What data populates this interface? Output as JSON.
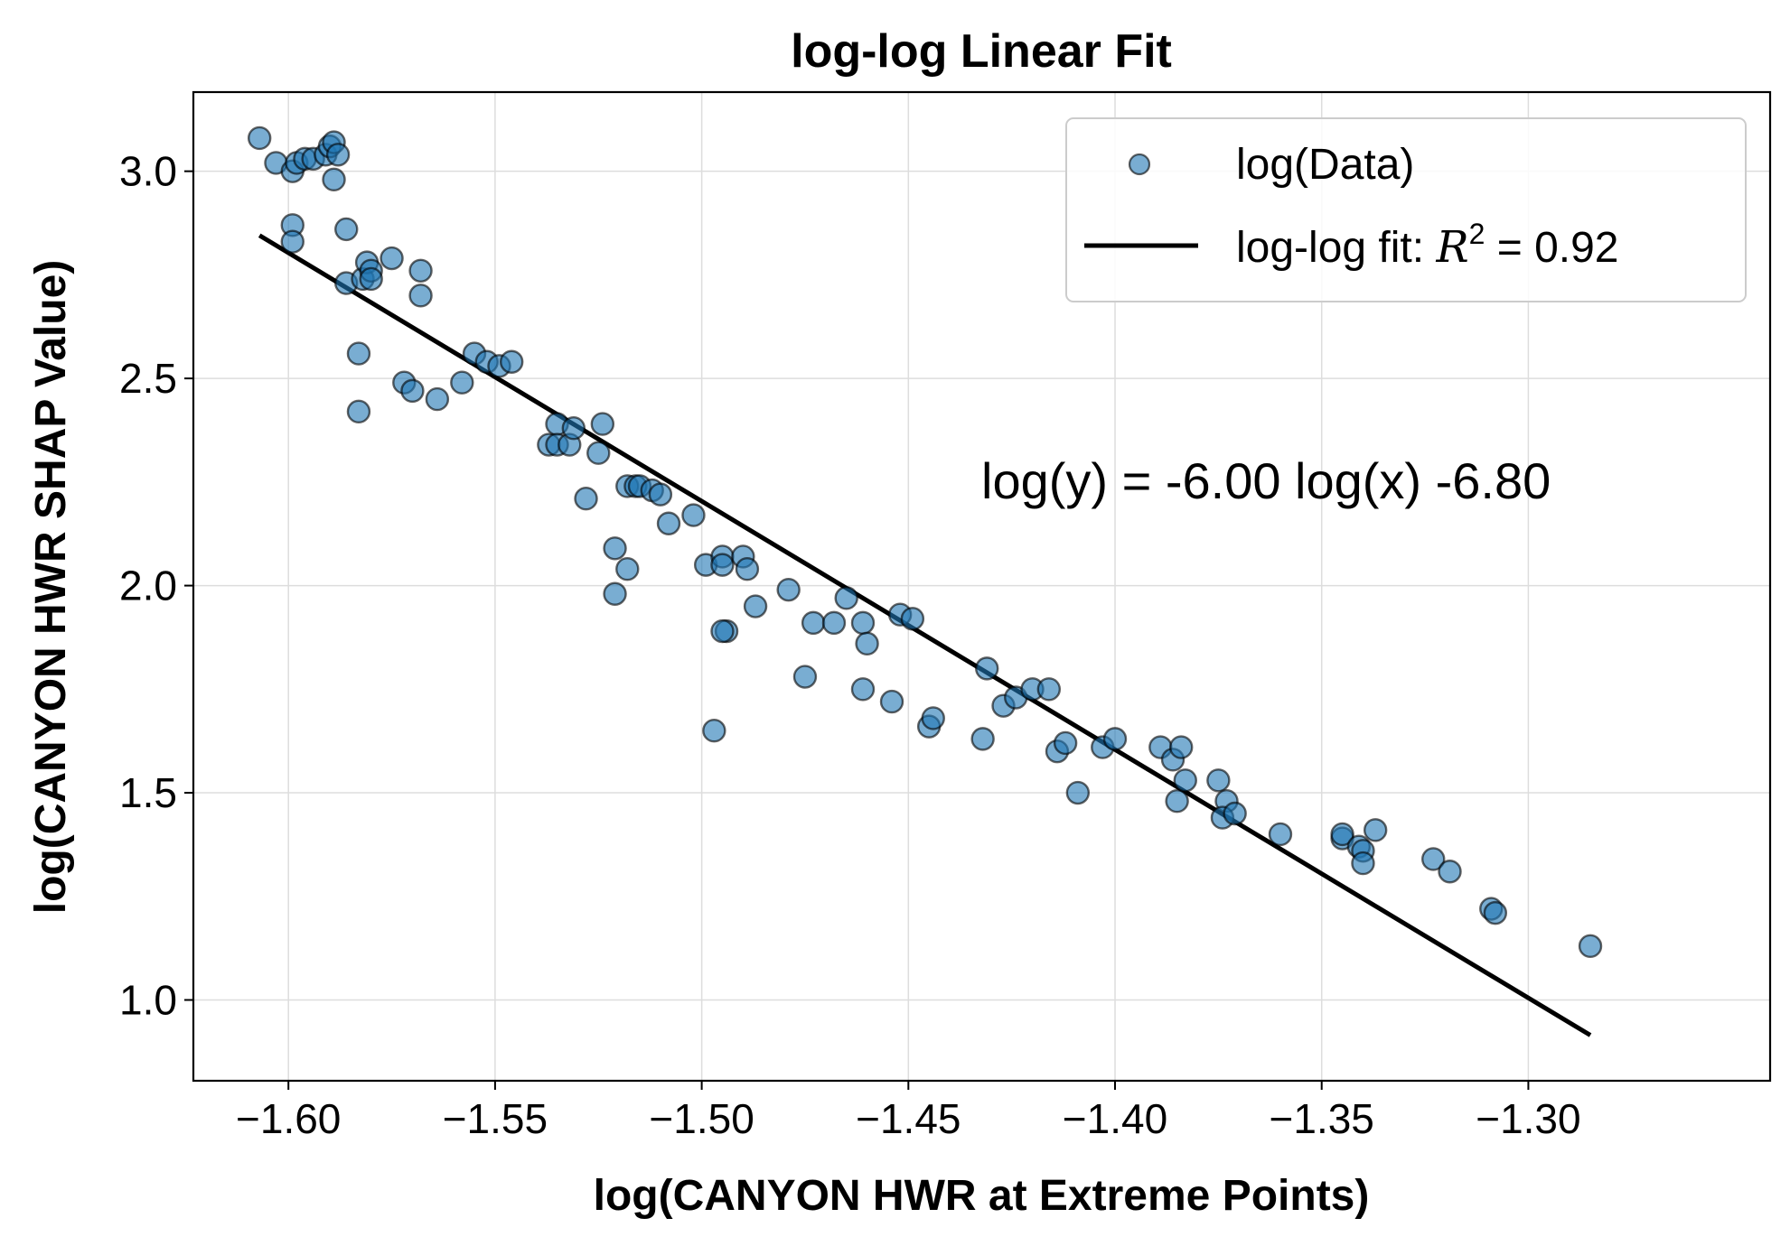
{
  "chart_data": {
    "type": "scatter",
    "title": "log-log Linear Fit",
    "xlabel": "log(CANYON HWR at Extreme Points)",
    "ylabel": "log(CANYON HWR SHAP Value)",
    "xlim": [
      -1.623,
      -1.2415
    ],
    "ylim": [
      0.805,
      3.191
    ],
    "xticks": [
      -1.6,
      -1.55,
      -1.5,
      -1.45,
      -1.4,
      -1.35,
      -1.3
    ],
    "xtick_labels": [
      "−1.60",
      "−1.55",
      "−1.50",
      "−1.45",
      "−1.40",
      "−1.35",
      "−1.30"
    ],
    "yticks": [
      1.0,
      1.5,
      2.0,
      2.5,
      3.0
    ],
    "ytick_labels": [
      "1.0",
      "1.5",
      "2.0",
      "2.5",
      "3.0"
    ],
    "grid": true,
    "legend_position": "top-right",
    "annotation": "log(y) = -6.00 log(x) -6.80",
    "colors": {
      "points_fill": "#1f77b4",
      "points_edge": "#000000",
      "fit_line": "#000000",
      "grid": "#dddddd"
    },
    "series": [
      {
        "name": "log(Data)",
        "kind": "scatter",
        "x": [
          -1.607,
          -1.603,
          -1.599,
          -1.598,
          -1.596,
          -1.594,
          -1.591,
          -1.59,
          -1.589,
          -1.588,
          -1.589,
          -1.599,
          -1.599,
          -1.586,
          -1.586,
          -1.582,
          -1.581,
          -1.58,
          -1.58,
          -1.575,
          -1.568,
          -1.568,
          -1.583,
          -1.583,
          -1.572,
          -1.57,
          -1.564,
          -1.558,
          -1.555,
          -1.552,
          -1.549,
          -1.546,
          -1.537,
          -1.535,
          -1.535,
          -1.532,
          -1.531,
          -1.528,
          -1.525,
          -1.524,
          -1.521,
          -1.521,
          -1.518,
          -1.518,
          -1.516,
          -1.515,
          -1.512,
          -1.51,
          -1.508,
          -1.502,
          -1.499,
          -1.495,
          -1.495,
          -1.494,
          -1.49,
          -1.489,
          -1.487,
          -1.479,
          -1.475,
          -1.473,
          -1.468,
          -1.465,
          -1.461,
          -1.46,
          -1.461,
          -1.454,
          -1.452,
          -1.449,
          -1.445,
          -1.444,
          -1.432,
          -1.431,
          -1.427,
          -1.424,
          -1.42,
          -1.416,
          -1.414,
          -1.412,
          -1.409,
          -1.403,
          -1.4,
          -1.389,
          -1.386,
          -1.385,
          -1.384,
          -1.383,
          -1.375,
          -1.373,
          -1.374,
          -1.371,
          -1.36,
          -1.345,
          -1.345,
          -1.341,
          -1.34,
          -1.34,
          -1.337,
          -1.323,
          -1.319,
          -1.309,
          -1.308,
          -1.285,
          -1.497,
          -1.495
        ],
        "y": [
          3.08,
          3.02,
          3.0,
          3.02,
          3.03,
          3.03,
          3.04,
          3.06,
          3.07,
          3.04,
          2.98,
          2.87,
          2.83,
          2.86,
          2.73,
          2.74,
          2.78,
          2.76,
          2.74,
          2.79,
          2.76,
          2.7,
          2.56,
          2.42,
          2.49,
          2.47,
          2.45,
          2.49,
          2.56,
          2.54,
          2.53,
          2.54,
          2.34,
          2.39,
          2.34,
          2.34,
          2.38,
          2.21,
          2.32,
          2.39,
          2.09,
          1.98,
          2.04,
          2.24,
          2.24,
          2.24,
          2.23,
          2.22,
          2.15,
          2.17,
          2.05,
          2.07,
          2.05,
          1.89,
          2.07,
          2.04,
          1.95,
          1.99,
          1.78,
          1.91,
          1.91,
          1.97,
          1.91,
          1.86,
          1.75,
          1.72,
          1.93,
          1.92,
          1.66,
          1.68,
          1.63,
          1.8,
          1.71,
          1.73,
          1.75,
          1.75,
          1.6,
          1.62,
          1.5,
          1.61,
          1.63,
          1.61,
          1.58,
          1.48,
          1.61,
          1.53,
          1.53,
          1.48,
          1.44,
          1.45,
          1.4,
          1.39,
          1.4,
          1.37,
          1.36,
          1.33,
          1.41,
          1.34,
          1.31,
          1.22,
          1.21,
          1.13,
          1.65,
          1.89
        ]
      },
      {
        "name": "log-log fit: R² = 0.92",
        "kind": "line",
        "x": [
          -1.607,
          -1.285
        ],
        "y": [
          2.845,
          0.915
        ]
      }
    ],
    "legend": {
      "scatter_label": "log(Data)",
      "fit_label_prefix": "log-log fit: ",
      "fit_label_math": "R",
      "fit_label_sup": "2",
      "fit_label_value": " = 0.92"
    }
  }
}
